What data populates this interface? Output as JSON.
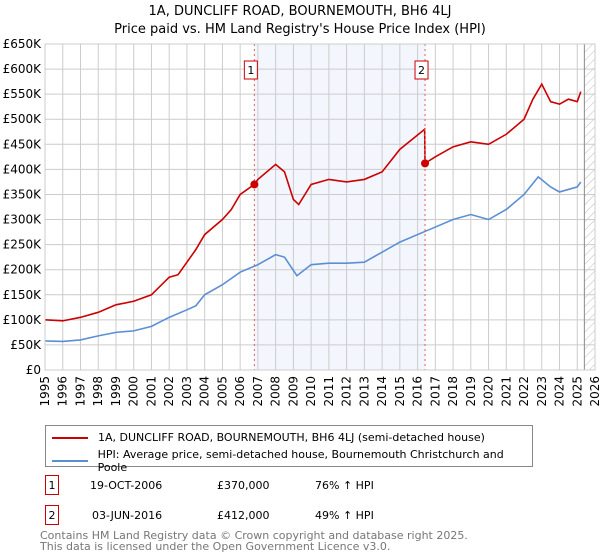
{
  "title": "1A, DUNCLIFF ROAD, BOURNEMOUTH, BH6 4LJ",
  "subtitle": "Price paid vs. HM Land Registry's House Price Index (HPI)",
  "chart_data": {
    "type": "line",
    "xlim": [
      1995,
      2026
    ],
    "ylim": [
      0,
      650000
    ],
    "yticks": [
      0,
      50000,
      100000,
      150000,
      200000,
      250000,
      300000,
      350000,
      400000,
      450000,
      500000,
      550000,
      600000,
      650000
    ],
    "ytick_labels": [
      "£0",
      "£50K",
      "£100K",
      "£150K",
      "£200K",
      "£250K",
      "£300K",
      "£350K",
      "£400K",
      "£450K",
      "£500K",
      "£550K",
      "£600K",
      "£650K"
    ],
    "xticks": [
      1995,
      1996,
      1997,
      1998,
      1999,
      2000,
      2001,
      2002,
      2003,
      2004,
      2005,
      2006,
      2007,
      2008,
      2009,
      2010,
      2011,
      2012,
      2013,
      2014,
      2015,
      2016,
      2017,
      2018,
      2019,
      2020,
      2021,
      2022,
      2023,
      2024,
      2025,
      2026
    ],
    "shaded_range": [
      2006.8,
      2016.42
    ],
    "future_hatch_from": 2025.4,
    "series": [
      {
        "name": "1A, DUNCLIFF ROAD, BOURNEMOUTH, BH6 4LJ (semi-detached house)",
        "color": "#cc0000",
        "x": [
          1995,
          1996,
          1997,
          1998,
          1999,
          2000,
          2001,
          2002,
          2002.5,
          2003,
          2003.5,
          2004,
          2005,
          2005.5,
          2006,
          2006.8,
          2007,
          2008,
          2008.5,
          2009,
          2009.3,
          2010,
          2011,
          2012,
          2013,
          2014,
          2015,
          2016.4,
          2016.42,
          2017,
          2018,
          2019,
          2020,
          2021,
          2022,
          2022.5,
          2023,
          2023.5,
          2024,
          2024.5,
          2025,
          2025.2
        ],
        "y": [
          100000,
          98000,
          105000,
          115000,
          130000,
          137000,
          150000,
          185000,
          190000,
          215000,
          240000,
          270000,
          300000,
          320000,
          350000,
          370000,
          380000,
          410000,
          395000,
          340000,
          330000,
          370000,
          380000,
          375000,
          380000,
          395000,
          440000,
          480000,
          412000,
          425000,
          445000,
          455000,
          450000,
          470000,
          500000,
          540000,
          570000,
          535000,
          530000,
          540000,
          535000,
          555000
        ]
      },
      {
        "name": "HPI: Average price, semi-detached house, Bournemouth Christchurch and Poole",
        "color": "#5b8fd4",
        "x": [
          1995,
          1996,
          1997,
          1998,
          1999,
          2000,
          2001,
          2002,
          2003,
          2003.5,
          2004,
          2005,
          2006,
          2007,
          2008,
          2008.5,
          2009.2,
          2010,
          2011,
          2012,
          2013,
          2014,
          2015,
          2016.4,
          2017,
          2018,
          2019,
          2020,
          2021,
          2022,
          2022.8,
          2023.5,
          2024,
          2024.5,
          2025,
          2025.2
        ],
        "y": [
          58000,
          57000,
          60000,
          68000,
          75000,
          78000,
          87000,
          105000,
          120000,
          128000,
          150000,
          170000,
          195000,
          210000,
          230000,
          225000,
          188000,
          210000,
          213000,
          213000,
          215000,
          235000,
          255000,
          276000,
          285000,
          300000,
          310000,
          300000,
          320000,
          350000,
          385000,
          365000,
          355000,
          360000,
          365000,
          375000
        ]
      }
    ],
    "markers": [
      {
        "label": "1",
        "x": 2006.8,
        "y": 370000
      },
      {
        "label": "2",
        "x": 2016.42,
        "y": 412000
      }
    ]
  },
  "legend": {
    "items": [
      "1A, DUNCLIFF ROAD, BOURNEMOUTH, BH6 4LJ (semi-detached house)",
      "HPI: Average price, semi-detached house, Bournemouth Christchurch and Poole"
    ]
  },
  "sales": [
    {
      "label": "1",
      "date": "19-OCT-2006",
      "price": "£370,000",
      "hpi": "76% ↑ HPI"
    },
    {
      "label": "2",
      "date": "03-JUN-2016",
      "price": "£412,000",
      "hpi": "49% ↑ HPI"
    }
  ],
  "footer": {
    "line1": "Contains HM Land Registry data © Crown copyright and database right 2025.",
    "line2": "This data is licensed under the Open Government Licence v3.0."
  }
}
